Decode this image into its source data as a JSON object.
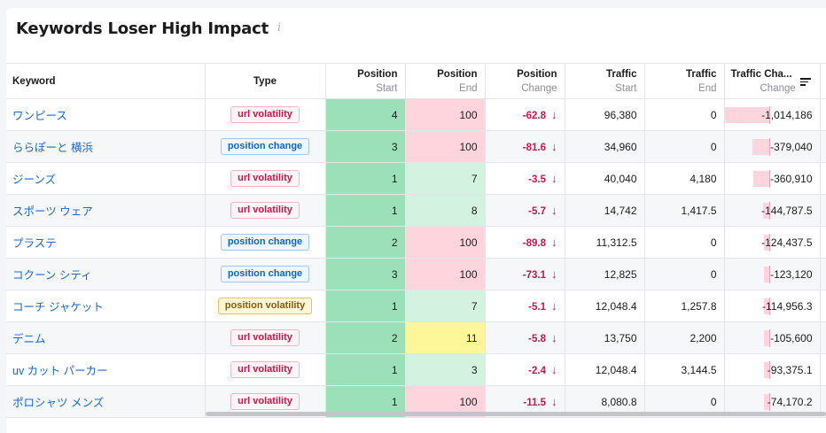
{
  "title": "Keywords Loser High Impact",
  "info_icon": "info-icon",
  "columns": {
    "keyword": "Keyword",
    "type": "Type",
    "pos_start": {
      "top": "Position",
      "sub": "Start"
    },
    "pos_end": {
      "top": "Position",
      "sub": "End"
    },
    "pos_change": {
      "top": "Position",
      "sub": "Change"
    },
    "traffic_start": {
      "top": "Traffic",
      "sub": "Start"
    },
    "traffic_end": {
      "top": "Traffic",
      "sub": "End"
    },
    "traffic_change": {
      "top": "Traffic Cha...",
      "sub": "Change"
    }
  },
  "colors": {
    "url_badge": "#d31147",
    "position_badge": "#0e67c7",
    "position_volatility_badge": "#8a5d00",
    "pos_start_fill": "#9ce0b9",
    "pos_end_red": "#ffd5dd",
    "pos_end_green": "#d3f3e0",
    "pos_end_yellow": "#fdf79a",
    "link": "#1668d8"
  },
  "rows": [
    {
      "keyword": "ワンピース",
      "type": "url volatility",
      "type_kind": "url",
      "pos_start": "4",
      "pos_end": "100",
      "pos_end_kind": "red",
      "pos_change": "-62.8",
      "traffic_start": "96,380",
      "traffic_end": "0",
      "traffic_change": "-1,014,186",
      "traffic_change_value": -1014186
    },
    {
      "keyword": "ららぽーと 横浜",
      "type": "position change",
      "type_kind": "pos",
      "pos_start": "3",
      "pos_end": "100",
      "pos_end_kind": "red",
      "pos_change": "-81.6",
      "traffic_start": "34,960",
      "traffic_end": "0",
      "traffic_change": "-379,040",
      "traffic_change_value": -379040
    },
    {
      "keyword": "ジーンズ",
      "type": "url volatility",
      "type_kind": "url",
      "pos_start": "1",
      "pos_end": "7",
      "pos_end_kind": "green",
      "pos_change": "-3.5",
      "traffic_start": "40,040",
      "traffic_end": "4,180",
      "traffic_change": "-360,910",
      "traffic_change_value": -360910
    },
    {
      "keyword": "スポーツ ウェア",
      "type": "url volatility",
      "type_kind": "url",
      "pos_start": "1",
      "pos_end": "8",
      "pos_end_kind": "green",
      "pos_change": "-5.7",
      "traffic_start": "14,742",
      "traffic_end": "1,417.5",
      "traffic_change": "-144,787.5",
      "traffic_change_value": -144787.5
    },
    {
      "keyword": "プラステ",
      "type": "position change",
      "type_kind": "pos",
      "pos_start": "2",
      "pos_end": "100",
      "pos_end_kind": "red",
      "pos_change": "-89.8",
      "traffic_start": "11,312.5",
      "traffic_end": "0",
      "traffic_change": "-124,437.5",
      "traffic_change_value": -124437.5
    },
    {
      "keyword": "コクーン シティ",
      "type": "position change",
      "type_kind": "pos",
      "pos_start": "3",
      "pos_end": "100",
      "pos_end_kind": "red",
      "pos_change": "-73.1",
      "traffic_start": "12,825",
      "traffic_end": "0",
      "traffic_change": "-123,120",
      "traffic_change_value": -123120
    },
    {
      "keyword": "コーチ ジャケット",
      "type": "position volatility",
      "type_kind": "posvol",
      "pos_start": "1",
      "pos_end": "7",
      "pos_end_kind": "green",
      "pos_change": "-5.1",
      "traffic_start": "12,048.4",
      "traffic_end": "1,257.8",
      "traffic_change": "-114,956.3",
      "traffic_change_value": -114956.3
    },
    {
      "keyword": "デニム",
      "type": "url volatility",
      "type_kind": "url",
      "pos_start": "2",
      "pos_end": "11",
      "pos_end_kind": "yellow",
      "pos_change": "-5.8",
      "traffic_start": "13,750",
      "traffic_end": "2,200",
      "traffic_change": "-105,600",
      "traffic_change_value": -105600
    },
    {
      "keyword": "uv カット パーカー",
      "type": "url volatility",
      "type_kind": "url",
      "pos_start": "1",
      "pos_end": "3",
      "pos_end_kind": "green",
      "pos_change": "-2.4",
      "traffic_start": "12,048.4",
      "traffic_end": "3,144.5",
      "traffic_change": "-93,375.1",
      "traffic_change_value": -93375.1
    },
    {
      "keyword": "ポロシャツ メンズ",
      "type": "url volatility",
      "type_kind": "url",
      "pos_start": "1",
      "pos_end": "100",
      "pos_end_kind": "red",
      "pos_change": "-11.5",
      "traffic_start": "8,080.8",
      "traffic_end": "0",
      "traffic_change": "-74,170.2",
      "traffic_change_value": -74170.2
    }
  ]
}
